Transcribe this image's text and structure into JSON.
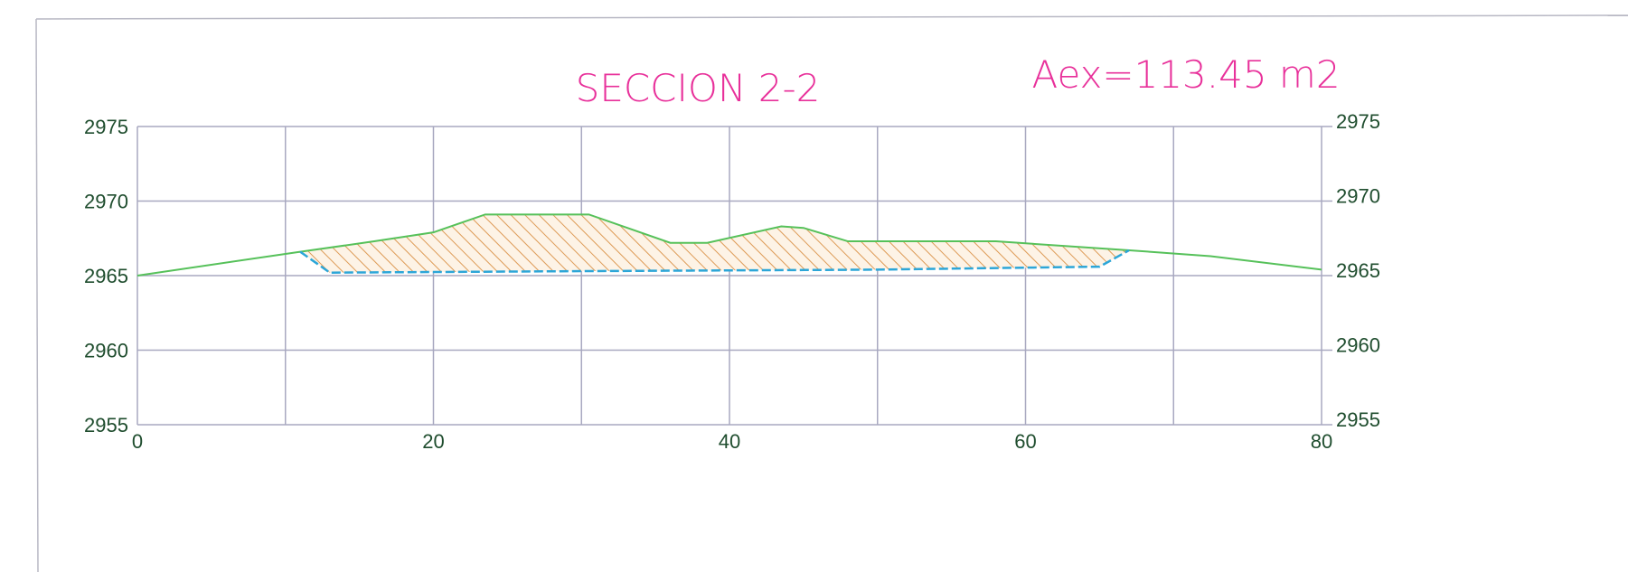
{
  "drawing": {
    "title": "SECCION 2-2",
    "area_label": "Aex=113.45 m2"
  },
  "chart_data": {
    "type": "area",
    "title": "SECCION 2-2",
    "annotation": "Aex=113.45 m2",
    "xlim": [
      0,
      80
    ],
    "ylim": [
      2955,
      2975
    ],
    "x_ticks": [
      0,
      20,
      40,
      60,
      80
    ],
    "x_tick_labels": [
      "0",
      "20",
      "40",
      "60",
      "80"
    ],
    "y_ticks": [
      2955,
      2960,
      2965,
      2970,
      2975
    ],
    "y_tick_labels": [
      "2955",
      "2960",
      "2965",
      "2970",
      "2975"
    ],
    "grid": true,
    "x_grid_step": 10,
    "y_grid_step": 5,
    "series": [
      {
        "role": "ground",
        "color": "#56c15a",
        "points": [
          [
            0,
            2965.0
          ],
          [
            11,
            2966.6
          ],
          [
            16,
            2967.3
          ],
          [
            20,
            2967.9
          ],
          [
            23.5,
            2969.1
          ],
          [
            30.5,
            2969.1
          ],
          [
            36,
            2967.2
          ],
          [
            38.5,
            2967.2
          ],
          [
            43.5,
            2968.3
          ],
          [
            45,
            2968.2
          ],
          [
            48,
            2967.3
          ],
          [
            58,
            2967.3
          ],
          [
            67,
            2966.7
          ],
          [
            72.5,
            2966.3
          ],
          [
            80,
            2965.4
          ]
        ]
      },
      {
        "role": "excavation",
        "color": "#2ca6d8",
        "points": [
          [
            11,
            2966.6
          ],
          [
            13,
            2965.2
          ],
          [
            30,
            2965.3
          ],
          [
            50,
            2965.4
          ],
          [
            65,
            2965.6
          ],
          [
            67,
            2966.7
          ]
        ]
      }
    ],
    "hatch_color": "#e0a060"
  }
}
